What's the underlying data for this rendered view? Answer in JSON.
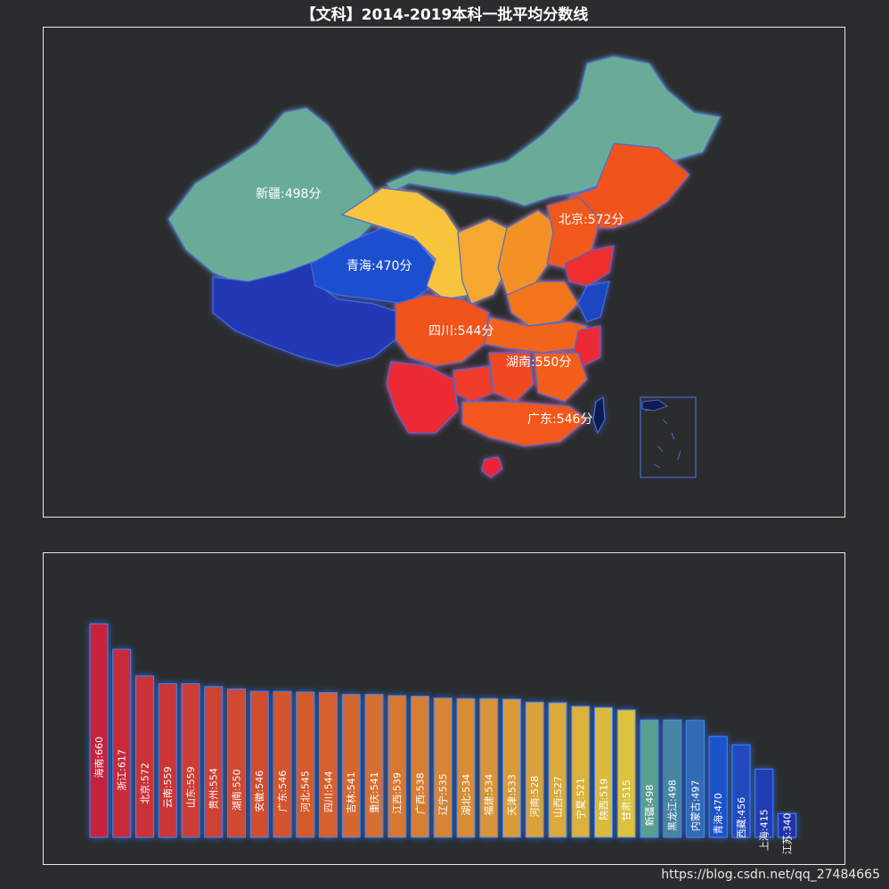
{
  "title": "【文科】2014-2019本科一批平均分数线",
  "watermark": "https://blog.csdn.net/qq_27484665",
  "map": {
    "labels": [
      {
        "text": "新疆:498分"
      },
      {
        "text": "青海:470分"
      },
      {
        "text": "北京:572分"
      },
      {
        "text": "四川:544分"
      },
      {
        "text": "湖南:550分"
      },
      {
        "text": "广东:546分"
      }
    ]
  },
  "chart_data": {
    "type": "bar",
    "title": "【文科】2014-2019本科一批平均分数线",
    "categories": [
      "海南",
      "浙江",
      "北京",
      "云南",
      "山东",
      "贵州",
      "湖南",
      "安徽",
      "广东",
      "河北",
      "四川",
      "吉林",
      "重庆",
      "江西",
      "广西",
      "辽宁",
      "湖北",
      "福建",
      "天津",
      "河南",
      "山西",
      "宁夏",
      "陕西",
      "甘肃",
      "新疆",
      "黑龙江",
      "内蒙古",
      "青海",
      "西藏",
      "上海",
      "江苏"
    ],
    "values": [
      660,
      617,
      572,
      559,
      559,
      554,
      550,
      546,
      546,
      545,
      544,
      541,
      541,
      539,
      538,
      535,
      534,
      534,
      533,
      528,
      527,
      521,
      519,
      515,
      498,
      498,
      497,
      470,
      456,
      415,
      340
    ],
    "ylim": [
      300,
      680
    ],
    "colors": {
      "high": "#c7243a",
      "mid": "#d45a2c",
      "orange": "#d9a23a",
      "yellow": "#dcc23c",
      "teal": "#5a9e8f",
      "blue": "#1f52c8",
      "darkblue": "#2233aa"
    }
  }
}
